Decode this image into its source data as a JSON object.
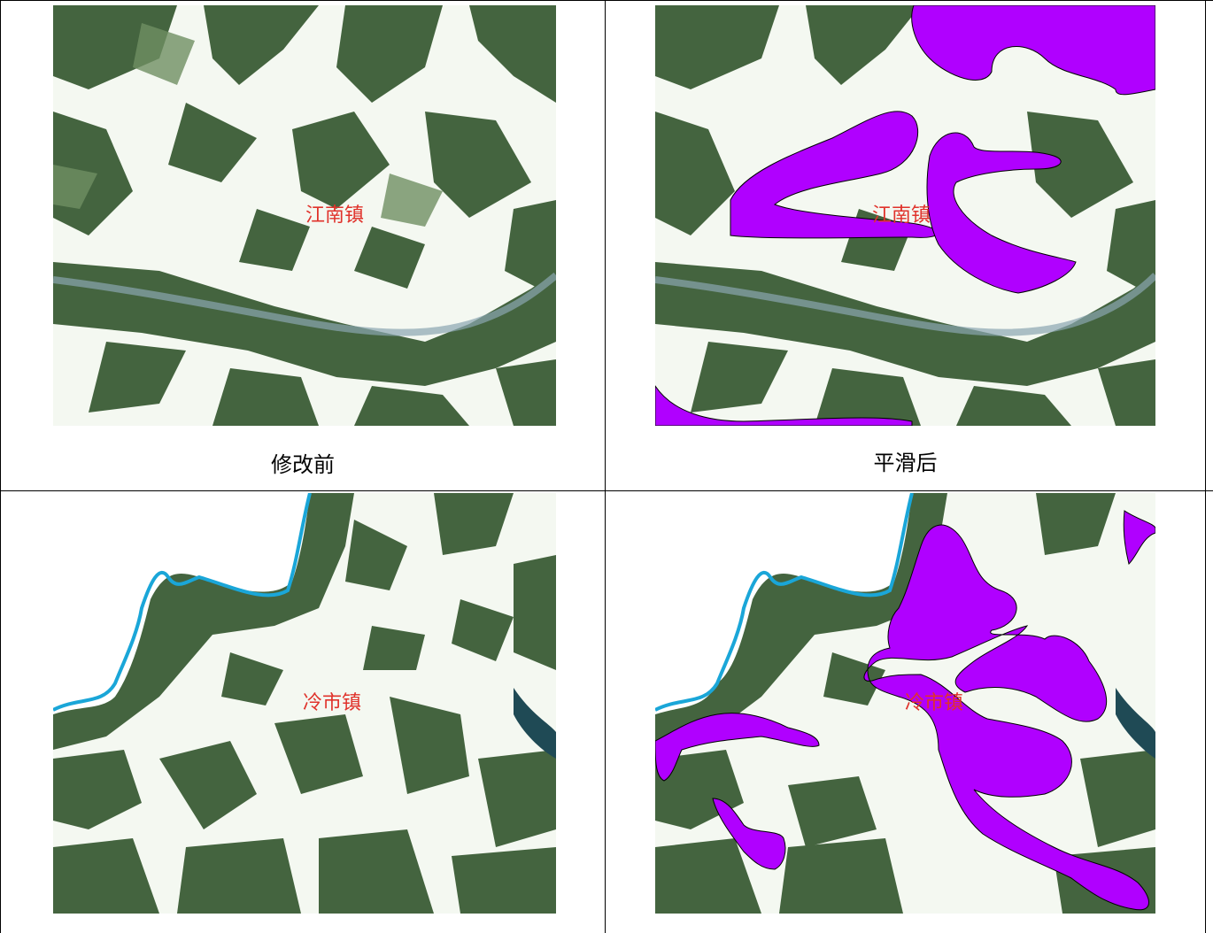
{
  "panels": [
    {
      "caption": "修改前",
      "town_label": "江南镇"
    },
    {
      "caption": "平滑后",
      "town_label": "江南镇"
    },
    {
      "caption": "",
      "town_label": "冷市镇"
    },
    {
      "caption": "",
      "town_label": "冷市镇"
    }
  ],
  "colors": {
    "forest_dark": "#3a5a3c",
    "forest": "#5f7d59",
    "clearing": "#f4f8f1",
    "river": "#1aa6d8",
    "smoothed_polygon": "#b000ff",
    "town_label": "#e0322b",
    "contour": "#6aa84f"
  },
  "legend_icons": {
    "map_texture": "satellite-imagery",
    "highlight": "smoothed-polygon"
  }
}
